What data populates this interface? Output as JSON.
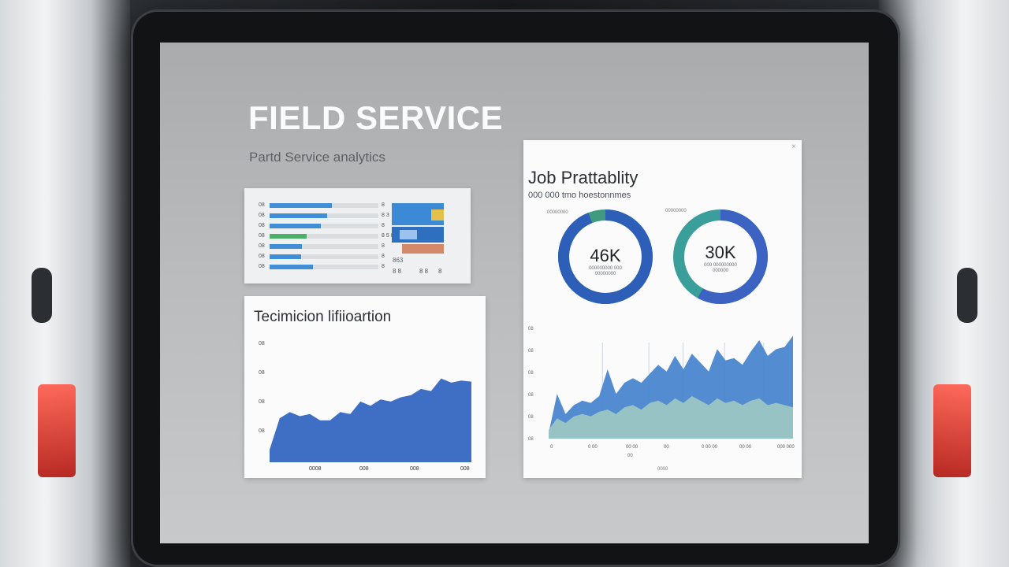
{
  "header": {
    "title": "FIELD SERVICE",
    "subtitle": "Partd Service analytics"
  },
  "bars_card": {
    "rows": [
      {
        "label": "08",
        "value": 0.57,
        "val_text": "8"
      },
      {
        "label": "08",
        "value": 0.53,
        "val_text": "8 3"
      },
      {
        "label": "08",
        "value": 0.47,
        "val_text": "8"
      },
      {
        "label": "08",
        "value": 0.34,
        "val_text": "8 5 8"
      },
      {
        "label": "08",
        "value": 0.3,
        "val_text": "8"
      },
      {
        "label": "08",
        "value": 0.29,
        "val_text": "8"
      },
      {
        "label": "08",
        "value": 0.4,
        "val_text": "8"
      }
    ],
    "mini_texts": [
      "863",
      "8 8",
      "8 8",
      "8"
    ]
  },
  "tech_card": {
    "title": "Tecimicion lifiioartion",
    "chart_data": {
      "type": "area",
      "title": "Tecimicion lifiioartion",
      "y_ticks": [
        "08",
        "08",
        "08",
        "08"
      ],
      "x_ticks": [
        "0008",
        "008",
        "008",
        "008"
      ],
      "x": [
        0,
        1,
        2,
        3,
        4,
        5,
        6,
        7,
        8,
        9,
        10,
        11,
        12,
        13,
        14,
        15,
        16,
        17,
        18,
        19,
        20
      ],
      "values": [
        12,
        42,
        48,
        44,
        46,
        40,
        40,
        48,
        46,
        58,
        54,
        60,
        58,
        62,
        64,
        70,
        68,
        80,
        76,
        78,
        77
      ],
      "ylim": [
        0,
        100
      ],
      "color": "#3f6fc4"
    }
  },
  "job_card": {
    "title": "Job Prattablity",
    "subtitle": "000 000 tmo hoestonnmes",
    "close_icon": "close-icon",
    "donuts": [
      {
        "label": "00000000",
        "value_text": "46K",
        "caption": "000000000 000 00000000",
        "fraction": 0.94,
        "color": "#2e5fb8",
        "accent": "#3f9a7e"
      },
      {
        "label": "00000000",
        "value_text": "30K",
        "caption": "000 000000000 000000",
        "fraction": 0.58,
        "color": "#3d63c2",
        "accent": "#3a9e9a"
      }
    ],
    "chart_data": {
      "type": "area",
      "y_ticks": [
        "08",
        "08",
        "08",
        "08",
        "08",
        "08"
      ],
      "x_ticks": [
        "0",
        "0 00",
        "00 00",
        "00",
        "0 00 00",
        "00 00",
        "000 000"
      ],
      "xlabel": "00",
      "footer": "0000",
      "x": [
        0,
        1,
        2,
        3,
        4,
        5,
        6,
        7,
        8,
        9,
        10,
        11,
        12,
        13,
        14,
        15,
        16,
        17,
        18,
        19,
        20,
        21,
        22,
        23,
        24,
        25,
        26,
        27,
        28,
        29
      ],
      "series": [
        {
          "values": [
            5,
            40,
            22,
            30,
            34,
            32,
            38,
            62,
            40,
            50,
            54,
            50,
            58,
            66,
            60,
            74,
            62,
            76,
            68,
            60,
            80,
            70,
            72,
            66,
            78,
            88,
            74,
            80,
            82,
            92
          ],
          "color": "#4a86cf"
        },
        {
          "values": [
            8,
            18,
            14,
            20,
            22,
            20,
            24,
            26,
            22,
            28,
            30,
            26,
            32,
            34,
            30,
            36,
            32,
            38,
            34,
            30,
            36,
            32,
            34,
            30,
            34,
            36,
            30,
            32,
            30,
            28
          ],
          "color": "#9ec9c2"
        }
      ],
      "ylim": [
        0,
        100
      ]
    }
  }
}
